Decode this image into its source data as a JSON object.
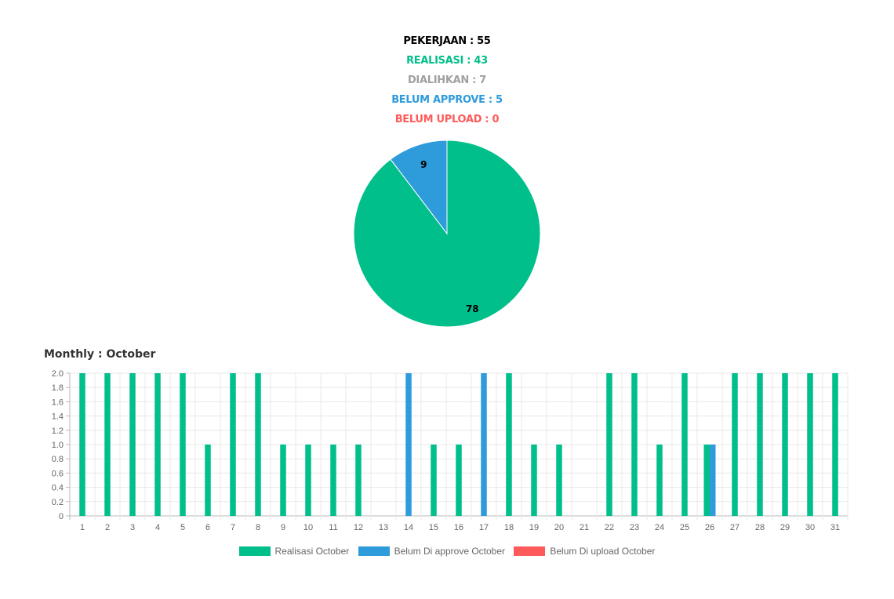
{
  "summary": {
    "pekerjaan": "PEKERJAAN : 55",
    "realisasi": "REALISASI : 43",
    "dialihkan": "DIALIHKAN : 7",
    "belum_approve": "BELUM APPROVE : 5",
    "belum_upload": "BELUM UPLOAD : 0"
  },
  "colors": {
    "pekerjaan": "#000000",
    "realisasi": "#00bf8a",
    "dialihkan": "#a0a0a0",
    "belum_approve": "#2e9bdb",
    "belum_upload": "#ff5a5a"
  },
  "monthly_title": "Monthly : October",
  "chart_data": [
    {
      "type": "pie",
      "slices": [
        {
          "label": "9",
          "value": 9,
          "color": "#2e9bdb"
        },
        {
          "label": "78",
          "value": 78,
          "color": "#00bf8a"
        }
      ]
    },
    {
      "type": "bar",
      "categories": [
        "1",
        "2",
        "3",
        "4",
        "5",
        "6",
        "7",
        "8",
        "9",
        "10",
        "11",
        "12",
        "13",
        "14",
        "15",
        "16",
        "17",
        "18",
        "19",
        "20",
        "21",
        "22",
        "23",
        "24",
        "25",
        "26",
        "27",
        "28",
        "29",
        "30",
        "31"
      ],
      "series": [
        {
          "name": "Realisasi October",
          "color": "#00bf8a",
          "values": [
            2,
            2,
            2,
            2,
            2,
            1,
            2,
            2,
            1,
            1,
            1,
            1,
            0,
            0,
            1,
            1,
            0,
            2,
            1,
            1,
            0,
            2,
            2,
            1,
            2,
            1,
            2,
            2,
            2,
            2,
            2
          ]
        },
        {
          "name": "Belum Di approve October",
          "color": "#2e9bdb",
          "values": [
            0,
            0,
            0,
            0,
            0,
            0,
            0,
            0,
            0,
            0,
            0,
            0,
            0,
            2,
            0,
            0,
            2,
            0,
            0,
            0,
            0,
            0,
            0,
            0,
            0,
            1,
            0,
            0,
            0,
            0,
            0
          ]
        },
        {
          "name": "Belum Di upload October",
          "color": "#ff5a5a",
          "values": [
            0,
            0,
            0,
            0,
            0,
            0,
            0,
            0,
            0,
            0,
            0,
            0,
            0,
            0,
            0,
            0,
            0,
            0,
            0,
            0,
            0,
            0,
            0,
            0,
            0,
            0,
            0,
            0,
            0,
            0,
            0
          ]
        }
      ],
      "ylim": [
        0,
        2
      ],
      "yticks": [
        "0",
        "0.2",
        "0.4",
        "0.6",
        "0.8",
        "1.0",
        "1.2",
        "1.4",
        "1.6",
        "1.8",
        "2.0"
      ],
      "grid": true,
      "legend": "bottom"
    }
  ]
}
